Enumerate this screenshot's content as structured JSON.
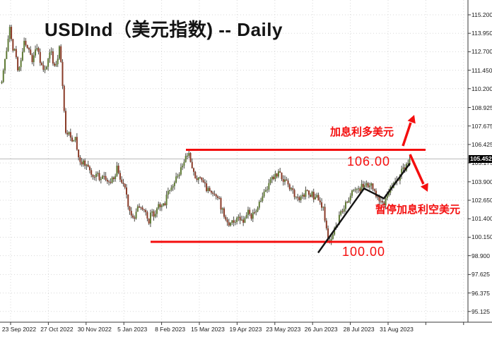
{
  "title": "USDInd（美元指数) -- Daily",
  "chart_data": {
    "type": "candlestick",
    "symbol": "USDInd",
    "symbol_cn": "美元指数",
    "timeframe": "Daily",
    "current_price": "105.452",
    "grid": true,
    "ylim": [
      95.125,
      115.2
    ],
    "y_axis_labels": [
      "115.200",
      "113.950",
      "112.700",
      "111.450",
      "110.200",
      "108.925",
      "107.675",
      "106.425",
      "105.175",
      "103.900",
      "102.650",
      "101.400",
      "100.150",
      "98.900",
      "97.625",
      "96.375",
      "95.125"
    ],
    "x_axis_labels": [
      "23 Sep 2022",
      "27 Oct 2022",
      "30 Nov 2022",
      "5 Jan 2023",
      "8 Feb 2023",
      "15 Mar 2023",
      "19 Apr 2023",
      "23 May 2023",
      "26 Jun 2023",
      "28 Jul 2023",
      "31 Aug 2023"
    ],
    "levels": {
      "resistance": 106.0,
      "support": 100.0
    },
    "annotations": {
      "hike": "加息利多美元",
      "resistance_label": "106.00",
      "pause": "暂停加息利空美元",
      "support_label": "100.00"
    },
    "trend_line_prices": [
      99.1,
      103.45,
      102.77,
      105.15
    ],
    "candle_count": 256,
    "noise_seed": 9,
    "price_path": [
      [
        2,
        110.6
      ],
      [
        7,
        112.3
      ],
      [
        13,
        114.35
      ],
      [
        17,
        113.1
      ],
      [
        22,
        112.4
      ],
      [
        26,
        111.2
      ],
      [
        30,
        112.3
      ],
      [
        34,
        113.5
      ],
      [
        40,
        112.7
      ],
      [
        46,
        112.1
      ],
      [
        51,
        113.1
      ],
      [
        57,
        111.9
      ],
      [
        62,
        111.4
      ],
      [
        68,
        112.3
      ],
      [
        72,
        112.6
      ],
      [
        77,
        111.6
      ],
      [
        81,
        112.2
      ],
      [
        84,
        113.0
      ],
      [
        87,
        111.2
      ],
      [
        90,
        108.6
      ],
      [
        93,
        106.9
      ],
      [
        97,
        107.2
      ],
      [
        101,
        106.5
      ],
      [
        105,
        107.0
      ],
      [
        109,
        106.1
      ],
      [
        113,
        105.1
      ],
      [
        117,
        105.5
      ],
      [
        121,
        105.1
      ],
      [
        126,
        104.6
      ],
      [
        131,
        104.25
      ],
      [
        136,
        104.5
      ],
      [
        141,
        104.1
      ],
      [
        146,
        104.4
      ],
      [
        151,
        104.0
      ],
      [
        156,
        103.8
      ],
      [
        161,
        104.3
      ],
      [
        165,
        104.8
      ],
      [
        169,
        104.2
      ],
      [
        173,
        103.6
      ],
      [
        177,
        103.2
      ],
      [
        181,
        102.2
      ],
      [
        185,
        101.5
      ],
      [
        189,
        101.4
      ],
      [
        193,
        101.9
      ],
      [
        198,
        102.3
      ],
      [
        203,
        101.9
      ],
      [
        207,
        101.5
      ],
      [
        211,
        100.8
      ],
      [
        213,
        102.0
      ],
      [
        216,
        101.4
      ],
      [
        220,
        101.9
      ],
      [
        225,
        102.4
      ],
      [
        230,
        102.2
      ],
      [
        235,
        102.8
      ],
      [
        240,
        103.3
      ],
      [
        245,
        103.8
      ],
      [
        250,
        104.3
      ],
      [
        255,
        104.7
      ],
      [
        259,
        105.2
      ],
      [
        263,
        105.7
      ],
      [
        266,
        105.75
      ],
      [
        270,
        105.3
      ],
      [
        274,
        104.5
      ],
      [
        278,
        103.9
      ],
      [
        283,
        104.2
      ],
      [
        288,
        103.6
      ],
      [
        293,
        103.4
      ],
      [
        298,
        103.1
      ],
      [
        303,
        102.8
      ],
      [
        308,
        102.9
      ],
      [
        313,
        102.1
      ],
      [
        318,
        101.4
      ],
      [
        322,
        100.85
      ],
      [
        326,
        101.3
      ],
      [
        330,
        101.05
      ],
      [
        335,
        101.6
      ],
      [
        340,
        101.35
      ],
      [
        345,
        101.1
      ],
      [
        350,
        101.8
      ],
      [
        355,
        101.5
      ],
      [
        360,
        102.0
      ],
      [
        365,
        102.4
      ],
      [
        371,
        102.9
      ],
      [
        377,
        103.4
      ],
      [
        383,
        103.9
      ],
      [
        388,
        104.25
      ],
      [
        393,
        104.4
      ],
      [
        398,
        104.2
      ],
      [
        404,
        103.8
      ],
      [
        410,
        103.4
      ],
      [
        416,
        103.0
      ],
      [
        422,
        102.7
      ],
      [
        428,
        102.95
      ],
      [
        434,
        103.3
      ],
      [
        439,
        103.1
      ],
      [
        444,
        102.9
      ],
      [
        450,
        102.7
      ],
      [
        456,
        102.2
      ],
      [
        460,
        101.1
      ],
      [
        464,
        100.0
      ],
      [
        467,
        99.75
      ],
      [
        471,
        100.5
      ],
      [
        476,
        101.0
      ],
      [
        481,
        101.6
      ],
      [
        486,
        102.1
      ],
      [
        491,
        102.6
      ],
      [
        496,
        103.0
      ],
      [
        501,
        103.35
      ],
      [
        506,
        103.2
      ],
      [
        511,
        103.6
      ],
      [
        515,
        103.85
      ],
      [
        519,
        103.5
      ],
      [
        524,
        103.7
      ],
      [
        529,
        103.2
      ],
      [
        534,
        102.85
      ],
      [
        539,
        102.6
      ],
      [
        543,
        102.5
      ],
      [
        548,
        103.0
      ],
      [
        553,
        103.5
      ],
      [
        558,
        103.9
      ],
      [
        563,
        104.2
      ],
      [
        567,
        104.5
      ],
      [
        571,
        104.8
      ],
      [
        575,
        105.05
      ],
      [
        578,
        105.3
      ],
      [
        581,
        105.45
      ]
    ],
    "colors": {
      "up_body": "#5f7a35",
      "down_body": "#8a3b28",
      "wick": "#4a4a44",
      "annotation_red": "#f40e0e",
      "trend_black": "#141414",
      "grid": "#d8d8d8",
      "axis_line": "#3a3a3a",
      "current_price_line": "#b8b8b8",
      "price_box_bg": "#000000",
      "price_box_text": "#ffffff"
    }
  }
}
